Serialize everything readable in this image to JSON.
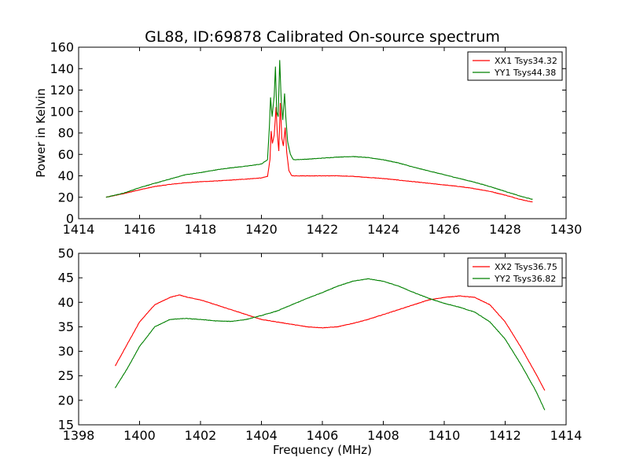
{
  "chart_data": [
    {
      "type": "line",
      "title": "GL88, ID:69878 Calibrated On-source spectrum",
      "xlabel": "",
      "ylabel": "Power in Kelvin",
      "xlim": [
        1414,
        1430
      ],
      "ylim": [
        0,
        160
      ],
      "xticks": [
        1414,
        1416,
        1418,
        1420,
        1422,
        1424,
        1426,
        1428,
        1430
      ],
      "yticks": [
        0,
        20,
        40,
        60,
        80,
        100,
        120,
        140,
        160
      ],
      "legend_position": "top-right",
      "series": [
        {
          "name": "XX1 Tsys34.32",
          "color": "#ff0000",
          "points": [
            [
              1414.9,
              20
            ],
            [
              1415.5,
              23.5
            ],
            [
              1416,
              27
            ],
            [
              1416.5,
              30
            ],
            [
              1417,
              32
            ],
            [
              1417.5,
              33.5
            ],
            [
              1418,
              34.5
            ],
            [
              1418.5,
              35.2
            ],
            [
              1419,
              36
            ],
            [
              1419.5,
              37
            ],
            [
              1420,
              38
            ],
            [
              1420.2,
              39.5
            ],
            [
              1420.28,
              55
            ],
            [
              1420.32,
              82
            ],
            [
              1420.36,
              70
            ],
            [
              1420.42,
              78
            ],
            [
              1420.48,
              104
            ],
            [
              1420.52,
              80
            ],
            [
              1420.57,
              63
            ],
            [
              1420.62,
              108
            ],
            [
              1420.67,
              75
            ],
            [
              1420.72,
              68
            ],
            [
              1420.78,
              85
            ],
            [
              1420.83,
              62
            ],
            [
              1420.9,
              45
            ],
            [
              1421,
              40
            ],
            [
              1421.5,
              40
            ],
            [
              1422,
              40
            ],
            [
              1422.5,
              40
            ],
            [
              1423,
              39.5
            ],
            [
              1423.5,
              38.5
            ],
            [
              1424,
              37.5
            ],
            [
              1424.5,
              36
            ],
            [
              1425,
              34.5
            ],
            [
              1425.5,
              33
            ],
            [
              1426,
              31.5
            ],
            [
              1426.5,
              30
            ],
            [
              1427,
              28
            ],
            [
              1427.5,
              25.5
            ],
            [
              1428,
              22
            ],
            [
              1428.5,
              18
            ],
            [
              1428.9,
              15.5
            ]
          ]
        },
        {
          "name": "YY1 Tsys44.38",
          "color": "#008000",
          "points": [
            [
              1414.9,
              20
            ],
            [
              1415.5,
              24
            ],
            [
              1416,
              29
            ],
            [
              1416.5,
              33
            ],
            [
              1417,
              37
            ],
            [
              1417.5,
              41
            ],
            [
              1418,
              43
            ],
            [
              1418.5,
              45.5
            ],
            [
              1419,
              47.5
            ],
            [
              1419.5,
              49
            ],
            [
              1420,
              51
            ],
            [
              1420.2,
              55
            ],
            [
              1420.26,
              85
            ],
            [
              1420.3,
              113
            ],
            [
              1420.35,
              95
            ],
            [
              1420.42,
              115
            ],
            [
              1420.46,
              142
            ],
            [
              1420.5,
              100
            ],
            [
              1420.55,
              95
            ],
            [
              1420.6,
              148
            ],
            [
              1420.65,
              110
            ],
            [
              1420.7,
              92
            ],
            [
              1420.76,
              117
            ],
            [
              1420.8,
              95
            ],
            [
              1420.86,
              72
            ],
            [
              1420.95,
              60
            ],
            [
              1421.05,
              55
            ],
            [
              1421.5,
              55.5
            ],
            [
              1422,
              56.5
            ],
            [
              1422.5,
              57.5
            ],
            [
              1423,
              58
            ],
            [
              1423.5,
              57
            ],
            [
              1424,
              55
            ],
            [
              1424.5,
              52
            ],
            [
              1425,
              48
            ],
            [
              1425.5,
              44.5
            ],
            [
              1426,
              41
            ],
            [
              1426.5,
              37.5
            ],
            [
              1427,
              34
            ],
            [
              1427.5,
              30
            ],
            [
              1428,
              25.5
            ],
            [
              1428.5,
              21
            ],
            [
              1428.9,
              18
            ]
          ]
        }
      ]
    },
    {
      "type": "line",
      "title": "",
      "xlabel": "Frequency (MHz)",
      "ylabel": "",
      "xlim": [
        1398,
        1414
      ],
      "ylim": [
        15,
        50
      ],
      "xticks": [
        1398,
        1400,
        1402,
        1404,
        1406,
        1408,
        1410,
        1412,
        1414
      ],
      "yticks": [
        15,
        20,
        25,
        30,
        35,
        40,
        45,
        50
      ],
      "legend_position": "top-right",
      "series": [
        {
          "name": "XX2 Tsys36.75",
          "color": "#ff0000",
          "points": [
            [
              1399.2,
              27
            ],
            [
              1399.6,
              31.5
            ],
            [
              1400,
              36
            ],
            [
              1400.5,
              39.5
            ],
            [
              1401,
              41
            ],
            [
              1401.3,
              41.5
            ],
            [
              1401.6,
              41
            ],
            [
              1402,
              40.5
            ],
            [
              1402.5,
              39.5
            ],
            [
              1403,
              38.5
            ],
            [
              1403.5,
              37.5
            ],
            [
              1404,
              36.5
            ],
            [
              1404.5,
              36
            ],
            [
              1405,
              35.5
            ],
            [
              1405.5,
              35
            ],
            [
              1406,
              34.8
            ],
            [
              1406.5,
              35
            ],
            [
              1407,
              35.7
            ],
            [
              1407.5,
              36.5
            ],
            [
              1408,
              37.5
            ],
            [
              1408.5,
              38.5
            ],
            [
              1409,
              39.5
            ],
            [
              1409.5,
              40.5
            ],
            [
              1410,
              41
            ],
            [
              1410.5,
              41.3
            ],
            [
              1411,
              41
            ],
            [
              1411.5,
              39.5
            ],
            [
              1412,
              36
            ],
            [
              1412.5,
              31
            ],
            [
              1413,
              25.5
            ],
            [
              1413.3,
              22
            ]
          ]
        },
        {
          "name": "YY2 Tsys36.82",
          "color": "#008000",
          "points": [
            [
              1399.2,
              22.5
            ],
            [
              1399.6,
              26.5
            ],
            [
              1400,
              31
            ],
            [
              1400.5,
              35
            ],
            [
              1401,
              36.5
            ],
            [
              1401.5,
              36.7
            ],
            [
              1402,
              36.5
            ],
            [
              1402.5,
              36.2
            ],
            [
              1403,
              36.1
            ],
            [
              1403.5,
              36.5
            ],
            [
              1404,
              37.3
            ],
            [
              1404.5,
              38.2
            ],
            [
              1405,
              39.5
            ],
            [
              1405.5,
              40.8
            ],
            [
              1406,
              42
            ],
            [
              1406.5,
              43.3
            ],
            [
              1407,
              44.3
            ],
            [
              1407.5,
              44.8
            ],
            [
              1408,
              44.3
            ],
            [
              1408.5,
              43.3
            ],
            [
              1409,
              42
            ],
            [
              1409.5,
              40.8
            ],
            [
              1410,
              39.8
            ],
            [
              1410.5,
              39
            ],
            [
              1411,
              38
            ],
            [
              1411.5,
              36
            ],
            [
              1412,
              32.5
            ],
            [
              1412.5,
              27.5
            ],
            [
              1413,
              22
            ],
            [
              1413.3,
              18
            ]
          ]
        }
      ]
    }
  ]
}
